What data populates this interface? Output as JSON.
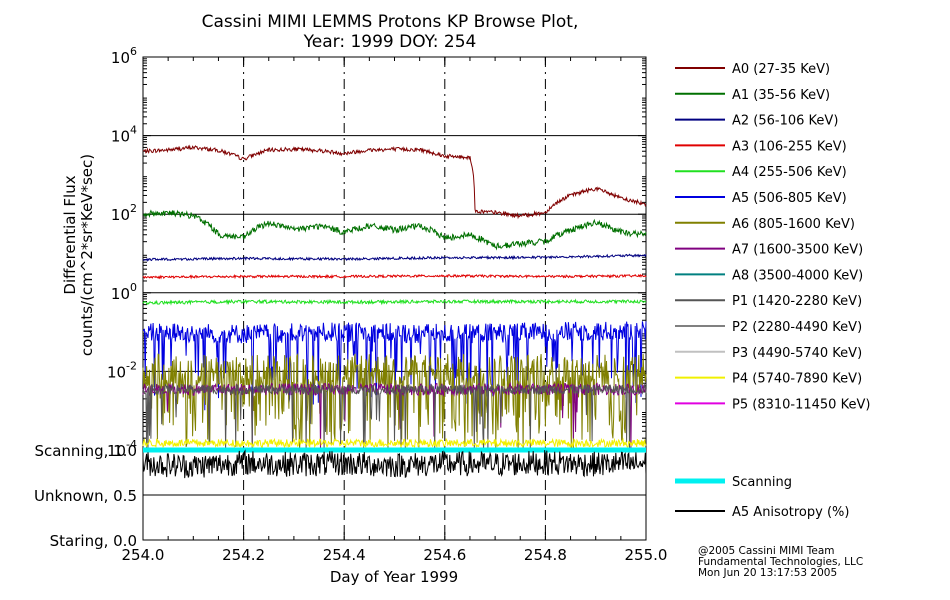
{
  "chart_data": [
    {
      "type": "line",
      "title": "Cassini MIMI LEMMS Protons KP Browse Plot,",
      "subtitle": "Year: 1999 DOY: 254",
      "ylabel_line1": "Differential Flux",
      "ylabel_line2": "counts/(cm^2*sr*KeV*sec)",
      "yscale": "log",
      "xlim": [
        254.0,
        255.0
      ],
      "ylim": [
        0.0001,
        1000000
      ],
      "y_ticks": [
        {
          "value": 0.0001,
          "base": "10",
          "exp": "-4"
        },
        {
          "value": 0.01,
          "base": "10",
          "exp": "-2"
        },
        {
          "value": 1,
          "base": "10",
          "exp": "0"
        },
        {
          "value": 100,
          "base": "10",
          "exp": "2"
        },
        {
          "value": 10000,
          "base": "10",
          "exp": "4"
        },
        {
          "value": 1000000,
          "base": "10",
          "exp": "6"
        }
      ],
      "hlines": [
        0.01,
        1,
        100,
        10000
      ],
      "vgrid_x": [
        254.2,
        254.4,
        254.6,
        254.8
      ],
      "legend_position": "right",
      "series": [
        {
          "name": "A0 (27-35 KeV)",
          "color": "#800000",
          "points": [
            [
              254.0,
              4000
            ],
            [
              254.05,
              4300
            ],
            [
              254.1,
              5000
            ],
            [
              254.15,
              4200
            ],
            [
              254.2,
              2500
            ],
            [
              254.25,
              4300
            ],
            [
              254.3,
              4500
            ],
            [
              254.35,
              4200
            ],
            [
              254.4,
              3500
            ],
            [
              254.45,
              4300
            ],
            [
              254.5,
              4500
            ],
            [
              254.55,
              4400
            ],
            [
              254.6,
              3000
            ],
            [
              254.65,
              2800
            ],
            [
              254.66,
              120
            ],
            [
              254.7,
              110
            ],
            [
              254.75,
              90
            ],
            [
              254.8,
              110
            ],
            [
              254.85,
              300
            ],
            [
              254.9,
              450
            ],
            [
              254.95,
              250
            ],
            [
              255.0,
              180
            ]
          ]
        },
        {
          "name": "A1 (35-56 KeV)",
          "color": "#007000",
          "points": [
            [
              254.0,
              100
            ],
            [
              254.05,
              110
            ],
            [
              254.1,
              90
            ],
            [
              254.15,
              30
            ],
            [
              254.2,
              25
            ],
            [
              254.25,
              60
            ],
            [
              254.3,
              40
            ],
            [
              254.35,
              50
            ],
            [
              254.4,
              35
            ],
            [
              254.45,
              50
            ],
            [
              254.5,
              40
            ],
            [
              254.55,
              50
            ],
            [
              254.6,
              25
            ],
            [
              254.65,
              30
            ],
            [
              254.7,
              15
            ],
            [
              254.75,
              18
            ],
            [
              254.8,
              20
            ],
            [
              254.85,
              40
            ],
            [
              254.9,
              60
            ],
            [
              254.95,
              35
            ],
            [
              255.0,
              30
            ]
          ]
        },
        {
          "name": "A2 (56-106 KeV)",
          "color": "#000080",
          "points": [
            [
              254.0,
              7
            ],
            [
              254.2,
              7.5
            ],
            [
              254.4,
              7.2
            ],
            [
              254.6,
              7.8
            ],
            [
              254.8,
              8
            ],
            [
              255.0,
              9
            ]
          ]
        },
        {
          "name": "A3 (106-255 KeV)",
          "color": "#e00000",
          "points": [
            [
              254.0,
              2.5
            ],
            [
              254.2,
              2.6
            ],
            [
              254.4,
              2.6
            ],
            [
              254.6,
              2.7
            ],
            [
              254.8,
              2.6
            ],
            [
              255.0,
              2.7
            ]
          ]
        },
        {
          "name": "A4 (255-506 KeV)",
          "color": "#20e020",
          "points": [
            [
              254.0,
              0.55
            ],
            [
              254.2,
              0.6
            ],
            [
              254.4,
              0.58
            ],
            [
              254.6,
              0.6
            ],
            [
              254.8,
              0.6
            ],
            [
              255.0,
              0.6
            ]
          ]
        },
        {
          "name": "A5 (506-805 KeV)",
          "color": "#0000e0",
          "points": [
            [
              254.0,
              0.1
            ],
            [
              254.2,
              0.09
            ],
            [
              254.4,
              0.1
            ],
            [
              254.6,
              0.09
            ],
            [
              254.8,
              0.1
            ],
            [
              255.0,
              0.11
            ]
          ]
        },
        {
          "name": "A6 (805-1600 KeV)",
          "color": "#808000",
          "points": [
            [
              254.0,
              0.01
            ],
            [
              254.2,
              0.01
            ],
            [
              254.4,
              0.01
            ],
            [
              254.6,
              0.01
            ],
            [
              254.8,
              0.01
            ],
            [
              255.0,
              0.01
            ]
          ]
        },
        {
          "name": "A7 (1600-3500 KeV)",
          "color": "#800080",
          "points": [
            [
              254.0,
              0.0035
            ],
            [
              254.5,
              0.0035
            ],
            [
              255.0,
              0.0035
            ]
          ]
        },
        {
          "name": "A8 (3500-4000 KeV)",
          "color": "#008080",
          "points": []
        },
        {
          "name": "P1 (1420-2280 KeV)",
          "color": "#555555",
          "points": [
            [
              254.0,
              0.0035
            ],
            [
              254.2,
              0.0035
            ],
            [
              254.4,
              0.0035
            ],
            [
              254.6,
              0.0035
            ],
            [
              254.8,
              0.0035
            ],
            [
              255.0,
              0.0035
            ]
          ]
        },
        {
          "name": "P2 (2280-4490 KeV)",
          "color": "#808080",
          "points": []
        },
        {
          "name": "P3 (4490-5740 KeV)",
          "color": "#c0c0c0",
          "points": []
        },
        {
          "name": "P4 (5740-7890 KeV)",
          "color": "#f0f000",
          "points": [
            [
              254.0,
              0.00015
            ],
            [
              254.5,
              0.00015
            ],
            [
              255.0,
              0.00015
            ]
          ]
        },
        {
          "name": "P5 (8310-11450 KeV)",
          "color": "#e000e0",
          "points": []
        }
      ]
    },
    {
      "type": "line",
      "xlabel": "Day of Year 1999",
      "xlim": [
        254.0,
        255.0
      ],
      "ylim": [
        0.0,
        1.0
      ],
      "x_ticks": [
        "254.0",
        "254.2",
        "254.4",
        "254.6",
        "254.8",
        "255.0"
      ],
      "y_ticks": [
        {
          "value": 1.0,
          "label": "Scanning, 1.0"
        },
        {
          "value": 0.5,
          "label": "Unknown, 0.5"
        },
        {
          "value": 0.0,
          "label": "Staring, 0.0"
        }
      ],
      "legend_position": "right",
      "series": [
        {
          "name": "Scanning",
          "color": "#00f0f0",
          "points": [
            [
              254.0,
              1.0
            ],
            [
              255.0,
              1.0
            ]
          ]
        },
        {
          "name": "A5 Anisotropy (%)",
          "color": "#000000",
          "points": [
            [
              254.0,
              0.85
            ],
            [
              254.1,
              0.82
            ],
            [
              254.2,
              0.86
            ],
            [
              254.3,
              0.84
            ],
            [
              254.4,
              0.85
            ],
            [
              254.5,
              0.83
            ],
            [
              254.6,
              0.85
            ],
            [
              254.7,
              0.84
            ],
            [
              254.8,
              0.86
            ],
            [
              254.9,
              0.84
            ],
            [
              255.0,
              0.85
            ]
          ]
        }
      ]
    }
  ],
  "footer": {
    "line1": "@2005 Cassini MIMI Team",
    "line2": "Fundamental Technologies, LLC",
    "line3": "Mon Jun 20 13:17:53 2005"
  }
}
